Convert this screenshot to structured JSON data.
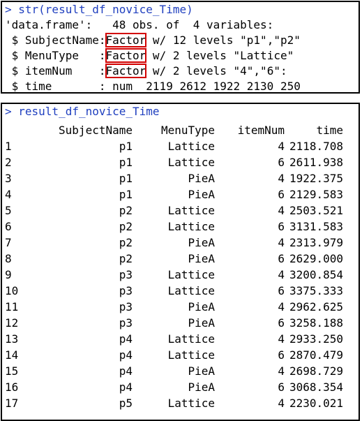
{
  "str_panel": {
    "command": "> str(result_df_novice_Time)",
    "lines": [
      {
        "prefix": "'data.frame':\t48 obs. of  4 variables:",
        "hl": "",
        "suffix": ""
      },
      {
        "prefix": " $ SubjectName:",
        "hl": "Factor",
        "suffix": " w/ 12 levels \"p1\",\"p2\""
      },
      {
        "prefix": " $ MenuType   :",
        "hl": "Factor",
        "suffix": " w/ 2 levels \"Lattice\""
      },
      {
        "prefix": " $ itemNum    :",
        "hl": "Factor",
        "suffix": " w/ 2 levels \"4\",\"6\":"
      },
      {
        "prefix": " $ time       : num  2119 2612 1922 2130 250",
        "hl": "",
        "suffix": ""
      }
    ]
  },
  "df_panel": {
    "command": "> result_df_novice_Time",
    "headers": [
      "",
      "SubjectName",
      "MenuType",
      "itemNum",
      "time"
    ],
    "rows": [
      [
        "1",
        "p1",
        "Lattice",
        "4",
        "2118.708"
      ],
      [
        "2",
        "p1",
        "Lattice",
        "6",
        "2611.938"
      ],
      [
        "3",
        "p1",
        "PieA",
        "4",
        "1922.375"
      ],
      [
        "4",
        "p1",
        "PieA",
        "6",
        "2129.583"
      ],
      [
        "5",
        "p2",
        "Lattice",
        "4",
        "2503.521"
      ],
      [
        "6",
        "p2",
        "Lattice",
        "6",
        "3131.583"
      ],
      [
        "7",
        "p2",
        "PieA",
        "4",
        "2313.979"
      ],
      [
        "8",
        "p2",
        "PieA",
        "6",
        "2629.000"
      ],
      [
        "9",
        "p3",
        "Lattice",
        "4",
        "3200.854"
      ],
      [
        "10",
        "p3",
        "Lattice",
        "6",
        "3375.333"
      ],
      [
        "11",
        "p3",
        "PieA",
        "4",
        "2962.625"
      ],
      [
        "12",
        "p3",
        "PieA",
        "6",
        "3258.188"
      ],
      [
        "13",
        "p4",
        "Lattice",
        "4",
        "2933.250"
      ],
      [
        "14",
        "p4",
        "Lattice",
        "6",
        "2870.479"
      ],
      [
        "15",
        "p4",
        "PieA",
        "4",
        "2698.729"
      ],
      [
        "16",
        "p4",
        "PieA",
        "6",
        "3068.354"
      ],
      [
        "17",
        "p5",
        "Lattice",
        "4",
        "2230.021"
      ]
    ]
  },
  "colors": {
    "command": "#1f3fbf",
    "highlight_box": "#d20000"
  }
}
